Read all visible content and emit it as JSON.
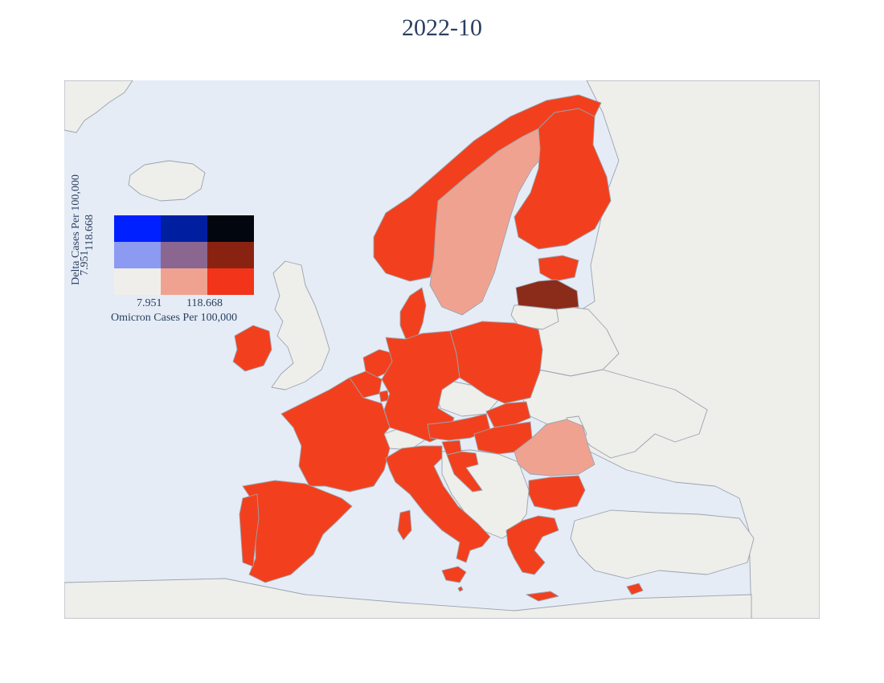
{
  "title": "2022-10",
  "colors": {
    "ocean": "#e5ecf6",
    "land_default": "#eeeeeb",
    "border": "#9aa3ad",
    "low_delta_high_omicron": "#f2401e",
    "mid_omicron": "#f0a291",
    "high_both": "#8b2b1a"
  },
  "legend": {
    "x_axis_label": "Omicron Cases Per 100,000",
    "y_axis_label": "Delta Cases Per 100,000",
    "x_ticks": [
      "7.951",
      "118.668"
    ],
    "y_ticks": [
      "7.951",
      "118.668"
    ],
    "grid": [
      [
        "#0020ff",
        "#001fa0",
        "#02060f"
      ],
      [
        "#8c9af2",
        "#8a6690",
        "#8a2212"
      ],
      [
        "#efeeeb",
        "#f0a291",
        "#f2341a"
      ]
    ]
  },
  "countries": [
    {
      "name": "Norway",
      "fill": "#f2401e"
    },
    {
      "name": "Sweden",
      "fill": "#f0a291"
    },
    {
      "name": "Finland",
      "fill": "#f2401e"
    },
    {
      "name": "Estonia",
      "fill": "#f2401e"
    },
    {
      "name": "Latvia",
      "fill": "#8b2b1a"
    },
    {
      "name": "Lithuania",
      "fill": "#eeeeeb"
    },
    {
      "name": "Denmark",
      "fill": "#f2401e"
    },
    {
      "name": "Ireland",
      "fill": "#f2401e"
    },
    {
      "name": "United Kingdom",
      "fill": "#eeeeeb"
    },
    {
      "name": "Iceland",
      "fill": "#eeeeeb"
    },
    {
      "name": "France",
      "fill": "#f2401e"
    },
    {
      "name": "Spain",
      "fill": "#f2401e"
    },
    {
      "name": "Portugal",
      "fill": "#f2401e"
    },
    {
      "name": "Belgium",
      "fill": "#f2401e"
    },
    {
      "name": "Netherlands",
      "fill": "#f2401e"
    },
    {
      "name": "Luxembourg",
      "fill": "#f2401e"
    },
    {
      "name": "Germany",
      "fill": "#f2401e"
    },
    {
      "name": "Poland",
      "fill": "#f2401e"
    },
    {
      "name": "Czechia",
      "fill": "#eeeeeb"
    },
    {
      "name": "Switzerland",
      "fill": "#eeeeeb"
    },
    {
      "name": "Austria",
      "fill": "#f2401e"
    },
    {
      "name": "Slovakia",
      "fill": "#f2401e"
    },
    {
      "name": "Hungary",
      "fill": "#f2401e"
    },
    {
      "name": "Slovenia",
      "fill": "#f2401e"
    },
    {
      "name": "Croatia",
      "fill": "#f2401e"
    },
    {
      "name": "Italy",
      "fill": "#f2401e"
    },
    {
      "name": "Romania",
      "fill": "#f0a291"
    },
    {
      "name": "Bulgaria",
      "fill": "#f2401e"
    },
    {
      "name": "Greece",
      "fill": "#f2401e"
    },
    {
      "name": "Cyprus",
      "fill": "#f2401e"
    },
    {
      "name": "Malta",
      "fill": "#f2401e"
    },
    {
      "name": "Balkans",
      "fill": "#eeeeeb"
    },
    {
      "name": "Belarus",
      "fill": "#eeeeeb"
    },
    {
      "name": "Ukraine",
      "fill": "#eeeeeb"
    },
    {
      "name": "Russia",
      "fill": "#eeeeeb"
    },
    {
      "name": "Turkey",
      "fill": "#eeeeeb"
    },
    {
      "name": "Moldova",
      "fill": "#eeeeeb"
    },
    {
      "name": "Greenland",
      "fill": "#eeeeeb"
    },
    {
      "name": "North Africa",
      "fill": "#eeeeeb"
    }
  ]
}
